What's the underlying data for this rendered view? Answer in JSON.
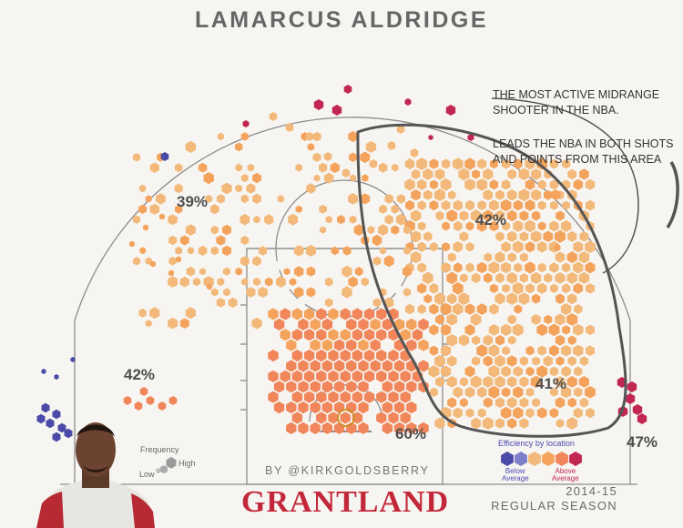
{
  "title": "LAMARCUS ALDRIDGE",
  "annotation": {
    "line1": "THE MOST ACTIVE MIDRANGE",
    "line2": "SHOOTER IN THE NBA.",
    "line3": "LEADS THE NBA IN BOTH SHOTS",
    "line4": "AND POINTS FROM THIS AREA"
  },
  "byline": "BY @KIRKGOLDSBERRY",
  "brand": "GRANTLAND",
  "season": {
    "year": "2014-15",
    "label": "REGULAR SEASON"
  },
  "frequency_legend": {
    "title": "Frequency",
    "low": "Low",
    "high": "High"
  },
  "efficiency_legend": {
    "title": "Efficiency by location",
    "below": [
      "Below",
      "Average"
    ],
    "above": [
      "Above",
      "Average"
    ]
  },
  "colors": {
    "court_line": "#8a8a8a",
    "below_average": "#4a4aa8",
    "below_avg_light": "#7d7fc8",
    "average_low": "#f2b97a",
    "average": "#f4a35c",
    "above_avg_light": "#f0865a",
    "above_average": "#c12750",
    "highlight_outline": "#555555"
  },
  "chart_data": {
    "type": "hexbin shot chart",
    "title": "LAMARCUS ALDRIDGE",
    "zone_labels": [
      {
        "zone": "left corner three",
        "fg_pct": "42%"
      },
      {
        "zone": "left wing / top three",
        "fg_pct": "39%"
      },
      {
        "zone": "right elbow midrange",
        "fg_pct": "42%"
      },
      {
        "zone": "right baseline midrange",
        "fg_pct": "41%"
      },
      {
        "zone": "restricted area",
        "fg_pct": "60%"
      },
      {
        "zone": "right corner three",
        "fg_pct": "47%"
      }
    ],
    "color_scale": [
      "Below Average",
      "Average",
      "Above Average"
    ],
    "size_scale": [
      "Low",
      "High"
    ]
  }
}
